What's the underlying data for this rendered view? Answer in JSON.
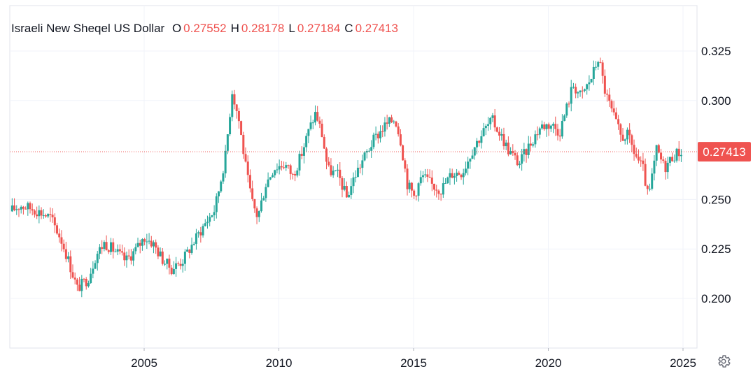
{
  "colors": {
    "up": "#26a69a",
    "down": "#ef5350",
    "grid": "#f0f3fa",
    "text": "#131722",
    "price_line": "#ef5350"
  },
  "legend": {
    "title": "Israeli New Sheqel US Dollar",
    "o_label": "O",
    "o_value": "0.27552",
    "h_label": "H",
    "h_value": "0.28178",
    "l_label": "L",
    "l_value": "0.27184",
    "c_label": "C",
    "c_value": "0.27413"
  },
  "last_price_label": "0.27413",
  "settings_icon": "gear-icon",
  "chart_data": {
    "type": "candlestick",
    "series_name": "Israeli New Sheqel US Dollar",
    "x_ticks": [
      "2005",
      "2010",
      "2015",
      "2020",
      "2025"
    ],
    "y_ticks": [
      "0.325",
      "0.300",
      "0.250",
      "0.225",
      "0.200"
    ],
    "ylim": [
      0.18,
      0.335
    ],
    "xlim": [
      2000.1,
      2025.5
    ],
    "last_price": 0.27413,
    "grid": true,
    "keypoints": [
      [
        2000.1,
        0.244
      ],
      [
        2000.5,
        0.247
      ],
      [
        2001.0,
        0.245
      ],
      [
        2001.6,
        0.241
      ],
      [
        2002.0,
        0.23
      ],
      [
        2002.3,
        0.218
      ],
      [
        2002.6,
        0.205
      ],
      [
        2003.0,
        0.21
      ],
      [
        2003.3,
        0.222
      ],
      [
        2003.6,
        0.228
      ],
      [
        2004.0,
        0.224
      ],
      [
        2004.4,
        0.219
      ],
      [
        2004.8,
        0.225
      ],
      [
        2005.1,
        0.231
      ],
      [
        2005.4,
        0.228
      ],
      [
        2005.8,
        0.219
      ],
      [
        2006.1,
        0.215
      ],
      [
        2006.5,
        0.219
      ],
      [
        2006.9,
        0.228
      ],
      [
        2007.3,
        0.237
      ],
      [
        2007.7,
        0.245
      ],
      [
        2007.9,
        0.258
      ],
      [
        2008.1,
        0.272
      ],
      [
        2008.35,
        0.305
      ],
      [
        2008.6,
        0.29
      ],
      [
        2008.9,
        0.262
      ],
      [
        2009.1,
        0.248
      ],
      [
        2009.3,
        0.241
      ],
      [
        2009.6,
        0.258
      ],
      [
        2009.9,
        0.266
      ],
      [
        2010.3,
        0.268
      ],
      [
        2010.6,
        0.262
      ],
      [
        2010.9,
        0.272
      ],
      [
        2011.2,
        0.285
      ],
      [
        2011.45,
        0.294
      ],
      [
        2011.7,
        0.282
      ],
      [
        2011.9,
        0.265
      ],
      [
        2012.3,
        0.262
      ],
      [
        2012.6,
        0.251
      ],
      [
        2012.9,
        0.262
      ],
      [
        2013.2,
        0.27
      ],
      [
        2013.6,
        0.28
      ],
      [
        2014.0,
        0.287
      ],
      [
        2014.4,
        0.291
      ],
      [
        2014.6,
        0.28
      ],
      [
        2014.85,
        0.258
      ],
      [
        2015.1,
        0.252
      ],
      [
        2015.4,
        0.262
      ],
      [
        2015.8,
        0.257
      ],
      [
        2016.1,
        0.255
      ],
      [
        2016.5,
        0.263
      ],
      [
        2016.9,
        0.264
      ],
      [
        2017.3,
        0.276
      ],
      [
        2017.7,
        0.285
      ],
      [
        2018.0,
        0.29
      ],
      [
        2018.3,
        0.283
      ],
      [
        2018.6,
        0.275
      ],
      [
        2019.0,
        0.268
      ],
      [
        2019.4,
        0.278
      ],
      [
        2019.8,
        0.287
      ],
      [
        2020.2,
        0.288
      ],
      [
        2020.5,
        0.284
      ],
      [
        2020.8,
        0.298
      ],
      [
        2021.0,
        0.308
      ],
      [
        2021.3,
        0.302
      ],
      [
        2021.7,
        0.312
      ],
      [
        2021.95,
        0.322
      ],
      [
        2022.2,
        0.304
      ],
      [
        2022.5,
        0.292
      ],
      [
        2022.8,
        0.281
      ],
      [
        2023.0,
        0.283
      ],
      [
        2023.3,
        0.273
      ],
      [
        2023.6,
        0.265
      ],
      [
        2023.8,
        0.25
      ],
      [
        2024.1,
        0.275
      ],
      [
        2024.4,
        0.266
      ],
      [
        2024.7,
        0.272
      ],
      [
        2024.95,
        0.27413
      ]
    ]
  }
}
